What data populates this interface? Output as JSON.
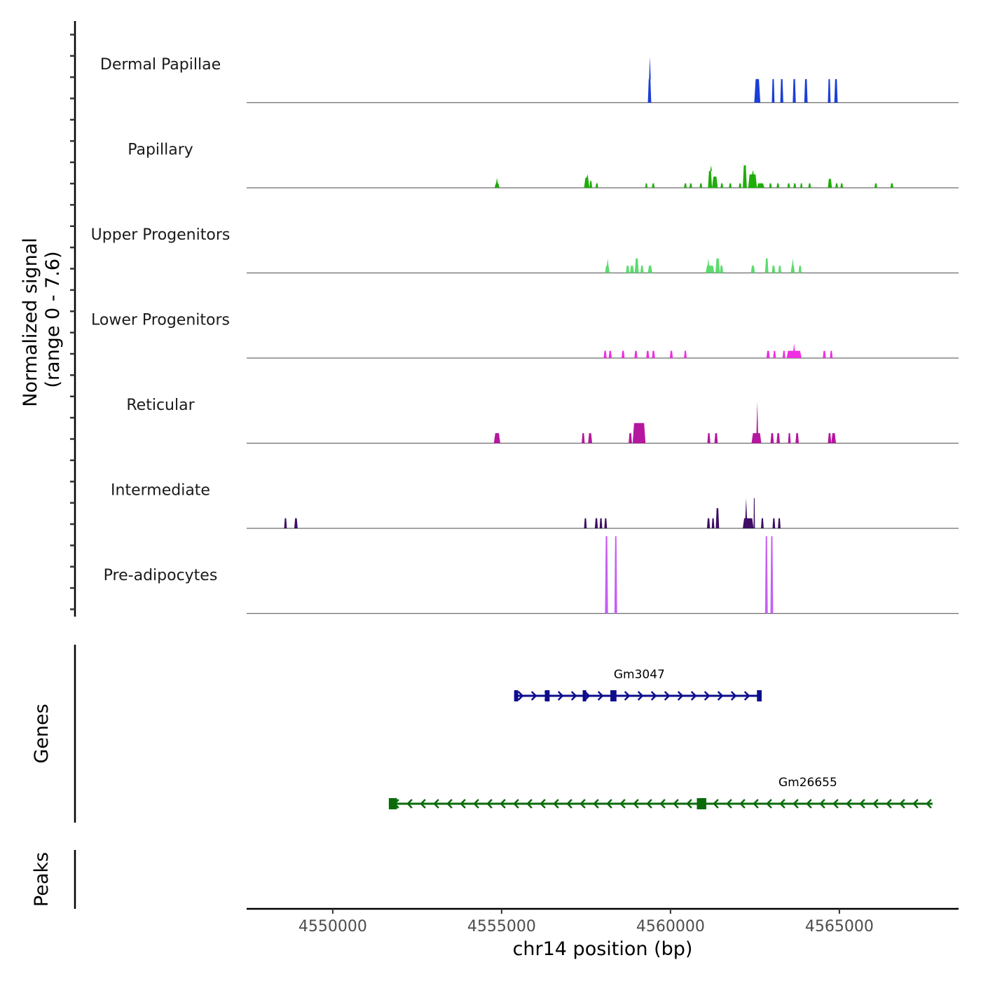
{
  "chart_data": {
    "type": "area",
    "title": "",
    "chromosome": "chr14",
    "xlabel": "chr14 position (bp)",
    "ylabel": "Normalized signal\n(range 0 - 7.6)",
    "ylabel_lines": [
      "Normalized signal",
      "(range 0 - 7.6)"
    ],
    "ylim": [
      0,
      7.6
    ],
    "xlim": [
      4547450,
      4568530
    ],
    "x_ticks": [
      4550000,
      4555000,
      4560000,
      4565000
    ],
    "x_tick_labels": [
      "4550000",
      "4555000",
      "4560000",
      "4565000"
    ],
    "grid": false,
    "legend": "none",
    "tracks": [
      {
        "name": "Dermal Papillae",
        "color": "#1a3fd9",
        "peaks": [
          {
            "start": 4559330,
            "end": 4559430,
            "value": 2.1,
            "summit": 4559390,
            "summit_value": 4.1
          },
          {
            "start": 4562480,
            "end": 4562660,
            "value": 2.1
          },
          {
            "start": 4563000,
            "end": 4563080,
            "value": 2.1
          },
          {
            "start": 4563250,
            "end": 4563340,
            "value": 2.1
          },
          {
            "start": 4563620,
            "end": 4563710,
            "value": 2.1
          },
          {
            "start": 4563960,
            "end": 4564060,
            "value": 2.1
          },
          {
            "start": 4564660,
            "end": 4564740,
            "value": 2.1
          },
          {
            "start": 4564850,
            "end": 4564950,
            "value": 2.1
          }
        ]
      },
      {
        "name": "Papillary",
        "color": "#1fad0a",
        "peaks": [
          {
            "start": 4554790,
            "end": 4554940,
            "value": 0.4,
            "summit": 4554860,
            "summit_value": 0.9
          },
          {
            "start": 4557440,
            "end": 4557600,
            "value": 0.9,
            "summit": 4557540,
            "summit_value": 1.2
          },
          {
            "start": 4557600,
            "end": 4557680,
            "value": 0.6
          },
          {
            "start": 4557780,
            "end": 4557860,
            "value": 0.4
          },
          {
            "start": 4559250,
            "end": 4559320,
            "value": 0.4
          },
          {
            "start": 4559450,
            "end": 4559530,
            "value": 0.4
          },
          {
            "start": 4560400,
            "end": 4560480,
            "value": 0.4
          },
          {
            "start": 4560560,
            "end": 4560640,
            "value": 0.4
          },
          {
            "start": 4560860,
            "end": 4560940,
            "value": 0.4
          },
          {
            "start": 4561110,
            "end": 4561230,
            "value": 1.5,
            "summit": 4561200,
            "summit_value": 2.0
          },
          {
            "start": 4561230,
            "end": 4561400,
            "value": 1.0
          },
          {
            "start": 4561480,
            "end": 4561560,
            "value": 0.4
          },
          {
            "start": 4561730,
            "end": 4561810,
            "value": 0.4
          },
          {
            "start": 4562020,
            "end": 4562100,
            "value": 0.4
          },
          {
            "start": 4562140,
            "end": 4562260,
            "value": 2.0
          },
          {
            "start": 4562300,
            "end": 4562560,
            "value": 1.2,
            "summit": 4562440,
            "summit_value": 1.6
          },
          {
            "start": 4562560,
            "end": 4562780,
            "value": 0.4
          },
          {
            "start": 4562920,
            "end": 4563000,
            "value": 0.4
          },
          {
            "start": 4563140,
            "end": 4563220,
            "value": 0.4
          },
          {
            "start": 4563460,
            "end": 4563540,
            "value": 0.4
          },
          {
            "start": 4563640,
            "end": 4563720,
            "value": 0.4
          },
          {
            "start": 4563840,
            "end": 4563910,
            "value": 0.4
          },
          {
            "start": 4564080,
            "end": 4564160,
            "value": 0.4
          },
          {
            "start": 4564660,
            "end": 4564780,
            "value": 0.8
          },
          {
            "start": 4564880,
            "end": 4564960,
            "value": 0.4
          },
          {
            "start": 4565030,
            "end": 4565110,
            "value": 0.4
          },
          {
            "start": 4566040,
            "end": 4566120,
            "value": 0.4
          },
          {
            "start": 4566510,
            "end": 4566600,
            "value": 0.4
          }
        ]
      },
      {
        "name": "Upper Progenitors",
        "color": "#5cdb6e",
        "peaks": [
          {
            "start": 4558060,
            "end": 4558200,
            "value": 0.65,
            "summit": 4558140,
            "summit_value": 1.3
          },
          {
            "start": 4558680,
            "end": 4558780,
            "value": 0.65
          },
          {
            "start": 4558800,
            "end": 4558920,
            "value": 0.65
          },
          {
            "start": 4558940,
            "end": 4559060,
            "value": 1.3
          },
          {
            "start": 4559110,
            "end": 4559200,
            "value": 0.65
          },
          {
            "start": 4559330,
            "end": 4559460,
            "value": 0.65
          },
          {
            "start": 4561040,
            "end": 4561300,
            "value": 0.65,
            "summit": 4561120,
            "summit_value": 1.3
          },
          {
            "start": 4561330,
            "end": 4561460,
            "value": 1.3
          },
          {
            "start": 4561460,
            "end": 4561560,
            "value": 0.65
          },
          {
            "start": 4562380,
            "end": 4562500,
            "value": 0.65
          },
          {
            "start": 4562800,
            "end": 4562900,
            "value": 1.3
          },
          {
            "start": 4563000,
            "end": 4563100,
            "value": 0.65
          },
          {
            "start": 4563190,
            "end": 4563280,
            "value": 0.65
          },
          {
            "start": 4563560,
            "end": 4563680,
            "value": 0.65,
            "summit": 4563620,
            "summit_value": 1.3
          },
          {
            "start": 4563790,
            "end": 4563880,
            "value": 0.65
          }
        ]
      },
      {
        "name": "Lower Progenitors",
        "color": "#ee2ee0",
        "peaks": [
          {
            "start": 4558020,
            "end": 4558110,
            "value": 0.65
          },
          {
            "start": 4558170,
            "end": 4558260,
            "value": 0.65
          },
          {
            "start": 4558550,
            "end": 4558640,
            "value": 0.65
          },
          {
            "start": 4558930,
            "end": 4559020,
            "value": 0.65
          },
          {
            "start": 4559280,
            "end": 4559370,
            "value": 0.65
          },
          {
            "start": 4559450,
            "end": 4559540,
            "value": 0.65
          },
          {
            "start": 4559980,
            "end": 4560070,
            "value": 0.65
          },
          {
            "start": 4560400,
            "end": 4560480,
            "value": 0.65
          },
          {
            "start": 4562840,
            "end": 4562940,
            "value": 0.65
          },
          {
            "start": 4563040,
            "end": 4563120,
            "value": 0.65
          },
          {
            "start": 4563320,
            "end": 4563400,
            "value": 0.65
          },
          {
            "start": 4563440,
            "end": 4563880,
            "value": 0.65,
            "summit": 4563660,
            "summit_value": 1.3
          },
          {
            "start": 4564510,
            "end": 4564600,
            "value": 0.65
          },
          {
            "start": 4564720,
            "end": 4564800,
            "value": 0.65
          }
        ]
      },
      {
        "name": "Reticular",
        "color": "#b5179e",
        "peaks": [
          {
            "start": 4554770,
            "end": 4554960,
            "value": 0.9
          },
          {
            "start": 4557370,
            "end": 4557460,
            "value": 0.9
          },
          {
            "start": 4557560,
            "end": 4557680,
            "value": 0.9
          },
          {
            "start": 4558760,
            "end": 4558860,
            "value": 0.9
          },
          {
            "start": 4558880,
            "end": 4559260,
            "value": 1.8
          },
          {
            "start": 4561090,
            "end": 4561180,
            "value": 0.9
          },
          {
            "start": 4561300,
            "end": 4561400,
            "value": 0.9
          },
          {
            "start": 4562400,
            "end": 4562690,
            "value": 0.9,
            "summit": 4562570,
            "summit_value": 3.7
          },
          {
            "start": 4562960,
            "end": 4563060,
            "value": 0.9
          },
          {
            "start": 4563140,
            "end": 4563240,
            "value": 0.9
          },
          {
            "start": 4563480,
            "end": 4563560,
            "value": 0.9
          },
          {
            "start": 4563700,
            "end": 4563800,
            "value": 0.9
          },
          {
            "start": 4564660,
            "end": 4564760,
            "value": 0.9
          },
          {
            "start": 4564760,
            "end": 4564900,
            "value": 0.9
          }
        ]
      },
      {
        "name": "Intermediate",
        "color": "#3d0e63",
        "peaks": [
          {
            "start": 4548560,
            "end": 4548640,
            "value": 0.9
          },
          {
            "start": 4548860,
            "end": 4548960,
            "value": 0.9
          },
          {
            "start": 4557440,
            "end": 4557520,
            "value": 0.9
          },
          {
            "start": 4557760,
            "end": 4557850,
            "value": 0.9
          },
          {
            "start": 4557900,
            "end": 4557980,
            "value": 0.9
          },
          {
            "start": 4558040,
            "end": 4558120,
            "value": 0.9
          },
          {
            "start": 4561080,
            "end": 4561170,
            "value": 0.9
          },
          {
            "start": 4561220,
            "end": 4561300,
            "value": 0.9
          },
          {
            "start": 4561340,
            "end": 4561440,
            "value": 1.8
          },
          {
            "start": 4562140,
            "end": 4562460,
            "value": 0.9,
            "summit": 4562240,
            "summit_value": 2.7
          },
          {
            "start": 4562460,
            "end": 4562500,
            "value": 2.7
          },
          {
            "start": 4562680,
            "end": 4562760,
            "value": 0.9
          },
          {
            "start": 4563020,
            "end": 4563100,
            "value": 0.9
          },
          {
            "start": 4563180,
            "end": 4563260,
            "value": 0.9
          }
        ]
      },
      {
        "name": "Pre-adipocytes",
        "color": "#c55ff5",
        "peaks": [
          {
            "start": 4558060,
            "end": 4558150,
            "value": 6.9
          },
          {
            "start": 4558340,
            "end": 4558420,
            "value": 6.9
          },
          {
            "start": 4562800,
            "end": 4562880,
            "value": 6.9
          },
          {
            "start": 4562960,
            "end": 4563040,
            "value": 6.9
          }
        ]
      }
    ],
    "genes_panel": {
      "label": "Genes",
      "genes": [
        {
          "name": "Gm3047",
          "strand": "+",
          "color": "#0d0d8c",
          "start": 4555370,
          "end": 4562700,
          "exons": [
            [
              4555370,
              4555490
            ],
            [
              4556280,
              4556420
            ],
            [
              4557400,
              4557500
            ],
            [
              4558220,
              4558400
            ],
            [
              4562560,
              4562700
            ]
          ]
        },
        {
          "name": "Gm26655",
          "strand": "-",
          "color": "#0b6b0b",
          "start": 4551660,
          "end": 4567760,
          "exons": [
            [
              4551660,
              4551900
            ],
            [
              4560780,
              4561060
            ]
          ]
        }
      ]
    },
    "peaks_panel": {
      "label": "Peaks",
      "peaks": []
    }
  }
}
